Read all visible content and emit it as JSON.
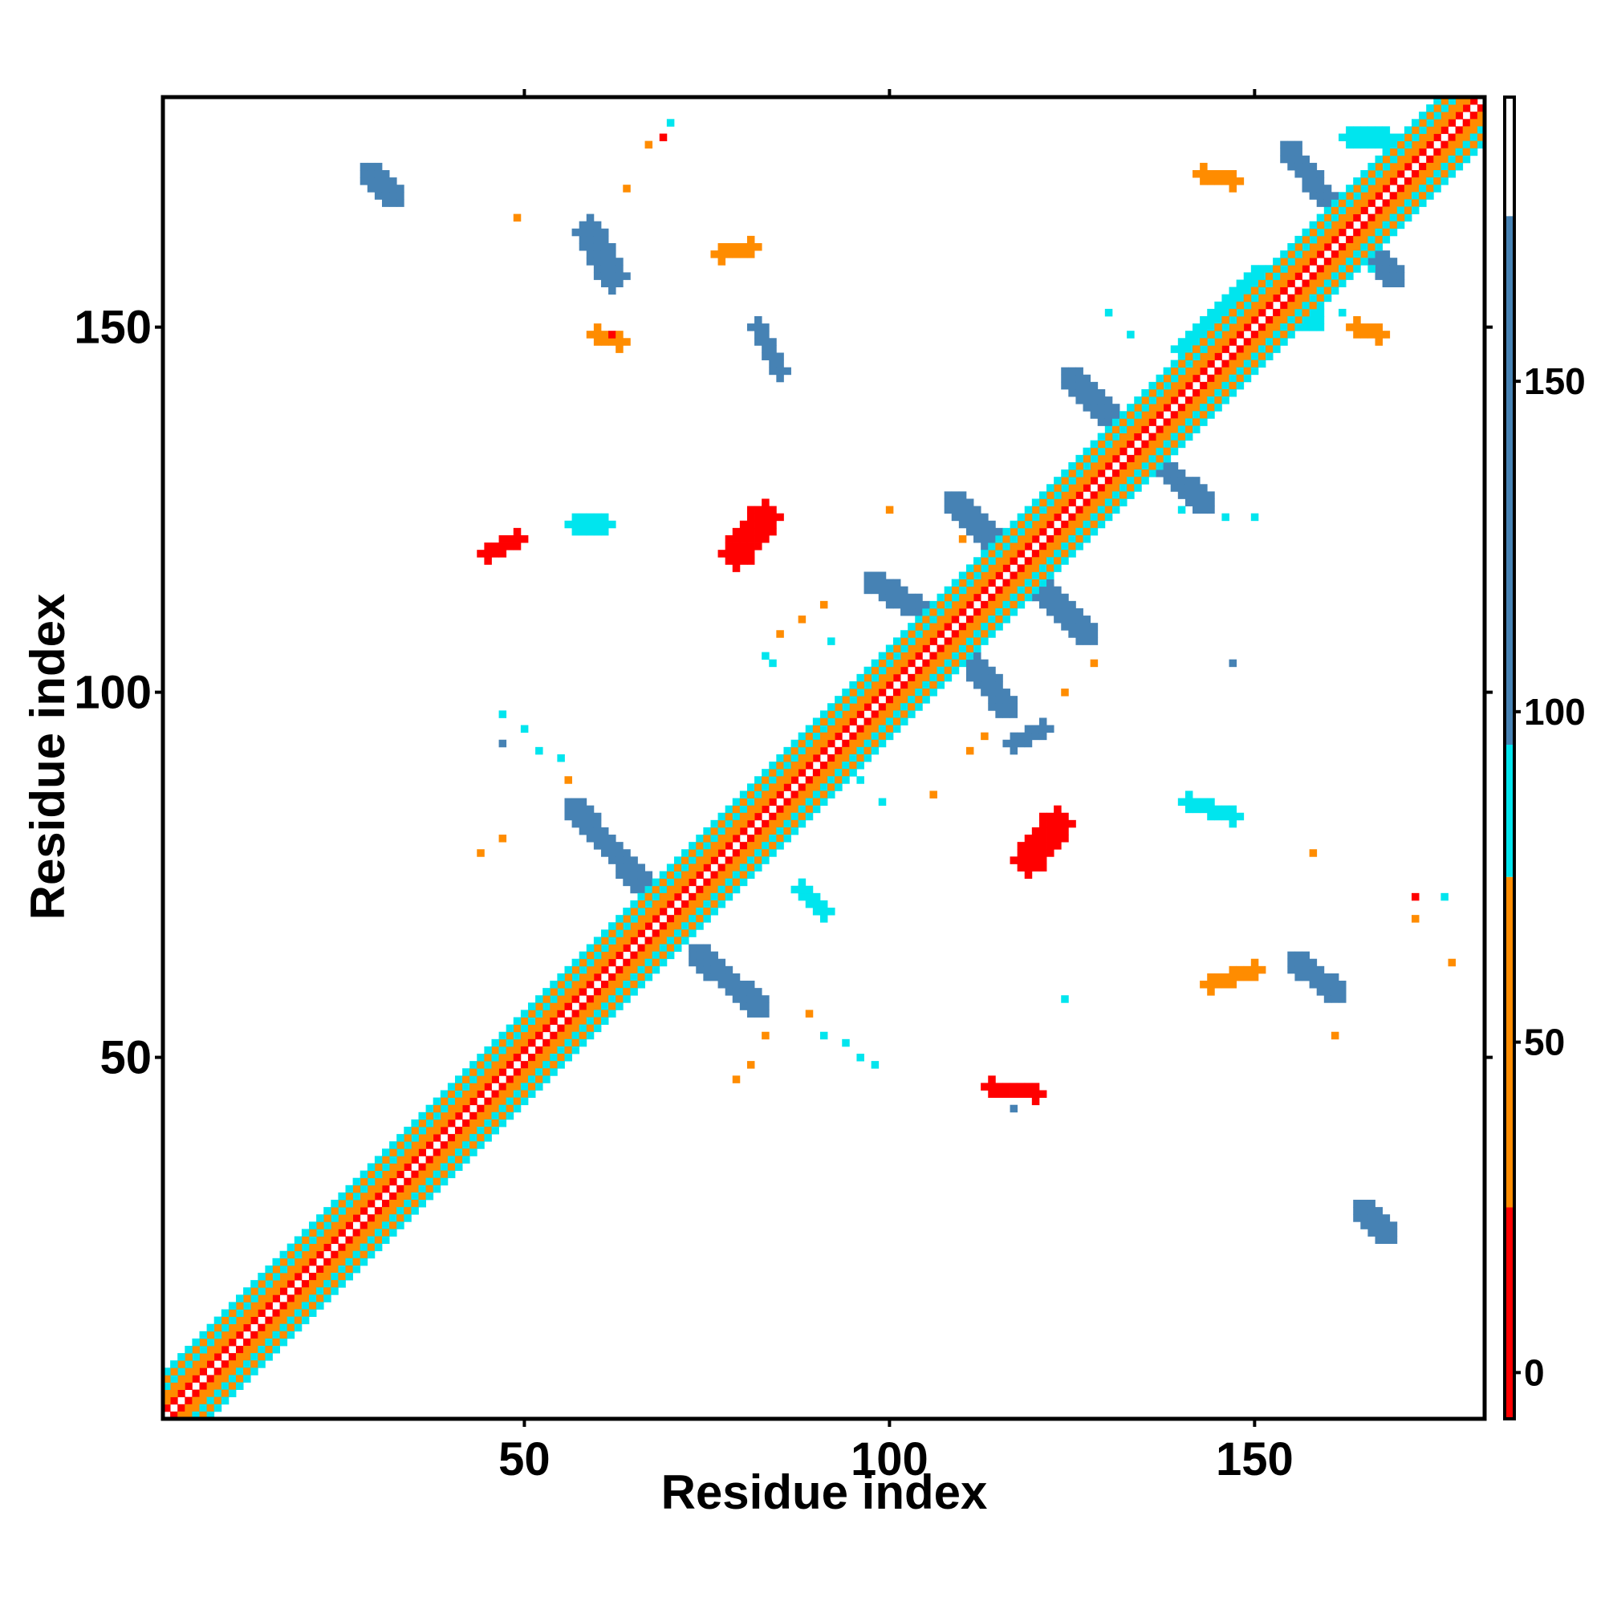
{
  "chart_data": {
    "type": "heatmap",
    "title": "",
    "xlabel": "Residue index",
    "ylabel": "Residue index",
    "xlim": [
      1,
      181
    ],
    "ylim": [
      1,
      181
    ],
    "xticks": [
      50,
      100,
      150
    ],
    "yticks": [
      50,
      100,
      150
    ],
    "grid": false,
    "colorbar": {
      "position": "right",
      "ticks": [
        0,
        50,
        100,
        150
      ],
      "range": [
        -7,
        193
      ],
      "bands": [
        {
          "from": -7,
          "to": 25,
          "color": "#ff0000"
        },
        {
          "from": 25,
          "to": 75,
          "color": "#ff8c00"
        },
        {
          "from": 75,
          "to": 95,
          "color": "#00e5ee"
        },
        {
          "from": 95,
          "to": 175,
          "color": "#4682b4"
        },
        {
          "from": 175,
          "to": 193,
          "color": "#ffffff"
        }
      ]
    },
    "diagonal_bands": [
      {
        "offset": 0,
        "value": 200
      },
      {
        "offset": 1,
        "value": 0
      },
      {
        "offset": 2,
        "value": 60
      },
      {
        "offset": 3,
        "value": 40
      },
      {
        "offset": 4,
        "value": 85
      },
      {
        "offset": 5,
        "value": 50
      },
      {
        "offset": 6,
        "value": 88
      }
    ],
    "contact_regions": [
      {
        "shape": "segment",
        "i1": 29,
        "j1": 171,
        "i2": 32,
        "j2": 168,
        "width": 1.6,
        "value": 140
      },
      {
        "shape": "segment",
        "i1": 59,
        "j1": 163,
        "i2": 62,
        "j2": 157,
        "width": 2,
        "value": 140
      },
      {
        "shape": "segment",
        "i1": 57,
        "j1": 84,
        "i2": 66,
        "j2": 74,
        "width": 1.6,
        "value": 130
      },
      {
        "shape": "segment",
        "i1": 74,
        "j1": 64,
        "i2": 82,
        "j2": 57,
        "width": 1.6,
        "value": 130
      },
      {
        "shape": "segment",
        "i1": 98,
        "j1": 115,
        "i2": 108,
        "j2": 109,
        "width": 1.6,
        "value": 130
      },
      {
        "shape": "segment",
        "i1": 110,
        "j1": 106,
        "i2": 116,
        "j2": 98,
        "width": 1.6,
        "value": 130
      },
      {
        "shape": "segment",
        "i1": 109,
        "j1": 126,
        "i2": 118,
        "j2": 117,
        "width": 1.6,
        "value": 130
      },
      {
        "shape": "segment",
        "i1": 118,
        "j1": 117,
        "i2": 127,
        "j2": 108,
        "width": 1.6,
        "value": 130
      },
      {
        "shape": "segment",
        "i1": 125,
        "j1": 143,
        "i2": 133,
        "j2": 135,
        "width": 1.6,
        "value": 130
      },
      {
        "shape": "segment",
        "i1": 135,
        "j1": 133,
        "i2": 143,
        "j2": 126,
        "width": 1.6,
        "value": 130
      },
      {
        "shape": "segment",
        "i1": 155,
        "j1": 174,
        "i2": 161,
        "j2": 166,
        "width": 1.6,
        "value": 130
      },
      {
        "shape": "segment",
        "i1": 163,
        "j1": 164,
        "i2": 169,
        "j2": 157,
        "width": 1.6,
        "value": 130
      },
      {
        "shape": "segment",
        "i1": 151,
        "j1": 157,
        "i2": 158,
        "j2": 151,
        "width": 1.6,
        "value": 85
      },
      {
        "shape": "segment",
        "i1": 40,
        "j1": 45,
        "i2": 58,
        "j2": 60,
        "width": 1.3,
        "value": 86
      },
      {
        "shape": "segment",
        "i1": 67,
        "j1": 72,
        "i2": 90,
        "j2": 95,
        "width": 1.3,
        "value": 86
      },
      {
        "shape": "segment",
        "i1": 140,
        "j1": 147,
        "i2": 150,
        "j2": 157,
        "width": 1.3,
        "value": 86
      },
      {
        "shape": "segment",
        "i1": 79,
        "j1": 119,
        "i2": 83,
        "j2": 124,
        "width": 2.2,
        "value": 5
      },
      {
        "shape": "segment",
        "i1": 119,
        "j1": 77,
        "i2": 123,
        "j2": 82,
        "width": 2.2,
        "value": 5
      },
      {
        "shape": "segment",
        "i1": 156,
        "j1": 63,
        "i2": 161,
        "j2": 59,
        "width": 1.6,
        "value": 140
      },
      {
        "shape": "segment",
        "i1": 165,
        "j1": 29,
        "i2": 168,
        "j2": 26,
        "width": 1.6,
        "value": 140
      },
      {
        "shape": "segment",
        "i1": 82,
        "j1": 150,
        "i2": 85,
        "j2": 144,
        "width": 1,
        "value": 130
      },
      {
        "shape": "segment",
        "i1": 141,
        "j1": 85,
        "i2": 147,
        "j2": 83,
        "width": 1,
        "value": 88
      },
      {
        "shape": "segment",
        "i1": 88,
        "j1": 73,
        "i2": 91,
        "j2": 70,
        "width": 1,
        "value": 86
      },
      {
        "shape": "segment",
        "i1": 60,
        "j1": 149,
        "i2": 63,
        "j2": 148,
        "width": 1,
        "value": 45
      },
      {
        "shape": "segment",
        "i1": 143,
        "j1": 171,
        "i2": 147,
        "j2": 170,
        "width": 1,
        "value": 45
      },
      {
        "shape": "segment",
        "i1": 164,
        "j1": 150,
        "i2": 167,
        "j2": 149,
        "width": 1,
        "value": 45
      },
      {
        "shape": "segment",
        "i1": 144,
        "j1": 60,
        "i2": 150,
        "j2": 62,
        "width": 1,
        "value": 45
      },
      {
        "shape": "segment",
        "i1": 114,
        "j1": 46,
        "i2": 120,
        "j2": 45,
        "width": 1,
        "value": 10
      },
      {
        "shape": "segment",
        "i1": 45,
        "j1": 119,
        "i2": 49,
        "j2": 121,
        "width": 1,
        "value": 15
      },
      {
        "shape": "segment",
        "i1": 77,
        "j1": 160,
        "i2": 81,
        "j2": 161,
        "width": 1,
        "value": 45
      },
      {
        "shape": "segment",
        "i1": 117,
        "j1": 93,
        "i2": 121,
        "j2": 95,
        "width": 1,
        "value": 130
      },
      {
        "shape": "segment",
        "i1": 57,
        "j1": 123,
        "i2": 61,
        "j2": 123,
        "width": 1,
        "value": 86
      },
      {
        "shape": "segment",
        "i1": 163,
        "j1": 176,
        "i2": 168,
        "j2": 176,
        "width": 1,
        "value": 86
      }
    ],
    "scatter_cells": [
      [
        70,
        178,
        86
      ],
      [
        67,
        175,
        40
      ],
      [
        69,
        176,
        15
      ],
      [
        49,
        165,
        30
      ],
      [
        64,
        169,
        45
      ],
      [
        62,
        149,
        15
      ],
      [
        47,
        97,
        86
      ],
      [
        47,
        93,
        130
      ],
      [
        50,
        95,
        86
      ],
      [
        52,
        92,
        86
      ],
      [
        55,
        91,
        86
      ],
      [
        47,
        80,
        45
      ],
      [
        44,
        78,
        45
      ],
      [
        56,
        88,
        45
      ],
      [
        83,
        53,
        45
      ],
      [
        81,
        49,
        45
      ],
      [
        79,
        47,
        45
      ],
      [
        89,
        56,
        45
      ],
      [
        91,
        53,
        86
      ],
      [
        94,
        52,
        86
      ],
      [
        96,
        50,
        86
      ],
      [
        98,
        49,
        86
      ],
      [
        83,
        105,
        86
      ],
      [
        85,
        108,
        45
      ],
      [
        88,
        110,
        45
      ],
      [
        91,
        112,
        45
      ],
      [
        92,
        107,
        86
      ],
      [
        84,
        104,
        86
      ],
      [
        96,
        88,
        86
      ],
      [
        99,
        85,
        86
      ],
      [
        106,
        86,
        45
      ],
      [
        111,
        92,
        45
      ],
      [
        113,
        94,
        45
      ],
      [
        117,
        43,
        130
      ],
      [
        120,
        44,
        15
      ],
      [
        124,
        58,
        86
      ],
      [
        130,
        152,
        86
      ],
      [
        133,
        149,
        86
      ],
      [
        110,
        121,
        45
      ],
      [
        100,
        125,
        45
      ],
      [
        124,
        100,
        45
      ],
      [
        128,
        104,
        45
      ],
      [
        162,
        152,
        86
      ],
      [
        166,
        158,
        86
      ],
      [
        171,
        165,
        86
      ],
      [
        177,
        63,
        45
      ],
      [
        172,
        72,
        15
      ],
      [
        176,
        72,
        86
      ],
      [
        172,
        69,
        45
      ],
      [
        158,
        78,
        45
      ],
      [
        161,
        53,
        45
      ],
      [
        146,
        124,
        86
      ],
      [
        150,
        124,
        86
      ],
      [
        140,
        125,
        86
      ],
      [
        147,
        104,
        130
      ]
    ]
  }
}
